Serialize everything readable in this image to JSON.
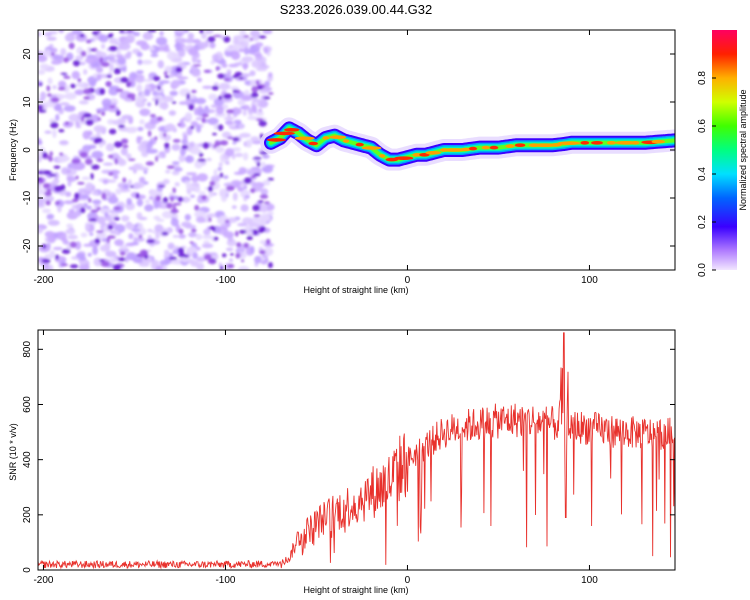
{
  "page_title": "S233.2026.039.00.44.G32",
  "colors": {
    "snr_line": "#e8312c",
    "axis": "#000000",
    "background": "#ffffff",
    "noise_dot": "#9b59e6",
    "noise_dot_dark": "#6a1fd6"
  },
  "chart_data": [
    {
      "type": "heatmap",
      "name": "spectrogram",
      "title": "S233.2026.039.00.44.G32",
      "xlabel": "Height of straight line (km)",
      "ylabel": "Frequency (Hz)",
      "xlim": [
        -203,
        147
      ],
      "ylim": [
        -25,
        25
      ],
      "x_ticks": [
        -200,
        -100,
        0,
        100
      ],
      "y_ticks": [
        -20,
        -10,
        0,
        10,
        20
      ],
      "noise_region_x": [
        -203,
        -75
      ],
      "ridge_start_x": -75,
      "ridge": {
        "x": [
          -75,
          -70,
          -65,
          -60,
          -55,
          -50,
          -45,
          -40,
          -35,
          -30,
          -25,
          -20,
          -15,
          -10,
          -5,
          0,
          5,
          10,
          15,
          20,
          30,
          40,
          50,
          60,
          70,
          80,
          85,
          90,
          95,
          100,
          110,
          120,
          130,
          140,
          147
        ],
        "freq": [
          1.5,
          2.5,
          4.5,
          3.5,
          2.0,
          1.0,
          2.5,
          3.0,
          2.0,
          1.5,
          1.0,
          0.5,
          -1.0,
          -2.0,
          -2.0,
          -1.5,
          -1.0,
          -1.0,
          -0.5,
          0.0,
          0.0,
          0.5,
          0.5,
          1.0,
          1.0,
          1.0,
          1.2,
          1.5,
          1.5,
          1.5,
          1.5,
          1.5,
          1.5,
          1.8,
          2.0
        ]
      },
      "colorbar": {
        "label": "Normalized spectral amplitude",
        "range": [
          0,
          1
        ],
        "ticks": [
          "0.0",
          "0.2",
          "0.4",
          "0.6",
          "0.8"
        ]
      }
    },
    {
      "type": "line",
      "name": "snr",
      "xlabel": "Height of straight line (km)",
      "ylabel": "SNR (10 * v/v)",
      "xlim": [
        -203,
        147
      ],
      "ylim": [
        0,
        870
      ],
      "x_ticks": [
        -200,
        -100,
        0,
        100
      ],
      "y_ticks": [
        0,
        200,
        400,
        600,
        800
      ],
      "trend": {
        "x": [
          -203,
          -150,
          -100,
          -75,
          -65,
          -60,
          -50,
          -40,
          -30,
          -20,
          -10,
          0,
          10,
          20,
          30,
          40,
          50,
          60,
          70,
          80,
          90,
          100,
          110,
          120,
          130,
          140,
          147
        ],
        "snr": [
          20,
          20,
          20,
          22,
          40,
          120,
          170,
          210,
          240,
          280,
          320,
          400,
          450,
          500,
          520,
          530,
          540,
          545,
          540,
          530,
          520,
          515,
          505,
          500,
          495,
          495,
          495
        ]
      },
      "noise_amplitude": 22,
      "spike": {
        "x": 86,
        "peak": 860,
        "min": 190
      }
    }
  ]
}
